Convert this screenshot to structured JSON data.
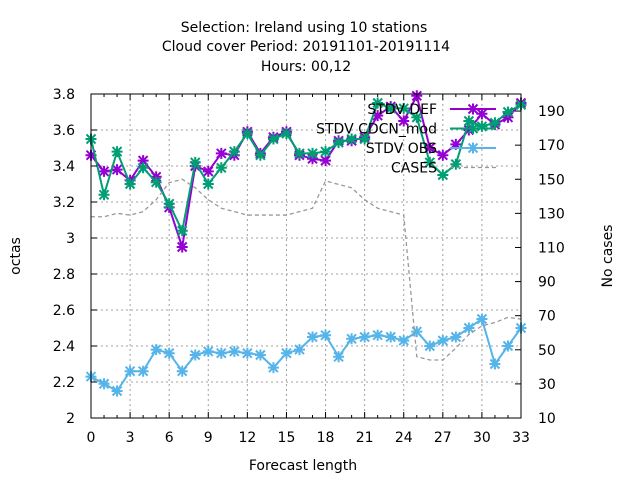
{
  "chart_data": {
    "type": "line",
    "title_lines": [
      "Selection: Ireland using    10 stations",
      "Cloud cover   Period: 20191101-20191114",
      "Hours:  00,12"
    ],
    "xlabel": "Forecast length",
    "ylabel": "octas",
    "y2label": "No cases",
    "xlim": [
      0,
      33
    ],
    "ylim": [
      2,
      3.8
    ],
    "y2lim": [
      10,
      200
    ],
    "xticks": [
      0,
      3,
      6,
      9,
      12,
      15,
      18,
      21,
      24,
      27,
      30,
      33
    ],
    "yticks": [
      "2",
      "2.2",
      "2.4",
      "2.6",
      "2.8",
      "3",
      "3.2",
      "3.4",
      "3.6",
      "3.8"
    ],
    "y2ticks": [
      "10",
      "30",
      "50",
      "70",
      "90",
      "110",
      "130",
      "150",
      "170",
      "190"
    ],
    "grid": true,
    "legend_position": "top-right",
    "series": [
      {
        "name": "STDV DEF",
        "color": "#9400d3",
        "marker": "x-star",
        "axis": "left",
        "x": [
          0,
          1,
          2,
          3,
          4,
          5,
          6,
          7,
          8,
          9,
          10,
          11,
          12,
          13,
          14,
          15,
          16,
          17,
          18,
          19,
          20,
          21,
          22,
          23,
          24,
          25,
          26,
          27,
          28,
          29,
          30,
          31,
          32,
          33
        ],
        "values": [
          3.46,
          3.37,
          3.38,
          3.32,
          3.43,
          3.34,
          3.17,
          2.95,
          3.4,
          3.37,
          3.47,
          3.46,
          3.59,
          3.47,
          3.56,
          3.59,
          3.46,
          3.44,
          3.43,
          3.54,
          3.54,
          3.56,
          3.68,
          3.73,
          3.65,
          3.79,
          3.5,
          3.46,
          3.52,
          3.6,
          3.69,
          3.63,
          3.67,
          3.75
        ]
      },
      {
        "name": "STDV CDCN_mod",
        "color": "#009e73",
        "marker": "x-star",
        "axis": "left",
        "x": [
          0,
          1,
          2,
          3,
          4,
          5,
          6,
          7,
          8,
          9,
          10,
          11,
          12,
          13,
          14,
          15,
          16,
          17,
          18,
          19,
          20,
          21,
          22,
          23,
          24,
          25,
          26,
          27,
          28,
          29,
          30,
          31,
          32,
          33
        ],
        "values": [
          3.55,
          3.24,
          3.48,
          3.3,
          3.39,
          3.31,
          3.19,
          3.04,
          3.42,
          3.3,
          3.39,
          3.48,
          3.58,
          3.46,
          3.55,
          3.58,
          3.47,
          3.47,
          3.48,
          3.53,
          3.55,
          3.55,
          3.75,
          3.72,
          3.72,
          3.67,
          3.42,
          3.35,
          3.41,
          3.65,
          3.62,
          3.64,
          3.7,
          3.74
        ]
      },
      {
        "name": "STDV OBS",
        "color": "#56b4e9",
        "marker": "x-star",
        "axis": "left",
        "x": [
          0,
          1,
          2,
          3,
          4,
          5,
          6,
          7,
          8,
          9,
          10,
          11,
          12,
          13,
          14,
          15,
          16,
          17,
          18,
          19,
          20,
          21,
          22,
          23,
          24,
          25,
          26,
          27,
          28,
          29,
          30,
          31,
          32,
          33
        ],
        "values": [
          2.23,
          2.19,
          2.15,
          2.26,
          2.26,
          2.38,
          2.36,
          2.26,
          2.35,
          2.37,
          2.36,
          2.37,
          2.36,
          2.35,
          2.28,
          2.36,
          2.38,
          2.45,
          2.46,
          2.34,
          2.44,
          2.45,
          2.46,
          2.45,
          2.43,
          2.48,
          2.4,
          2.43,
          2.45,
          2.5,
          2.55,
          2.3,
          2.4,
          2.5
        ]
      },
      {
        "name": "CASES",
        "color": "#999999",
        "dashed": true,
        "axis": "right",
        "x": [
          0,
          1,
          2,
          3,
          4,
          5,
          6,
          7,
          8,
          9,
          10,
          11,
          12,
          13,
          14,
          15,
          16,
          17,
          18,
          19,
          20,
          21,
          22,
          23,
          24,
          25,
          26,
          27,
          28,
          29,
          30,
          31,
          32,
          33
        ],
        "values": [
          128,
          128,
          130,
          129,
          131,
          138,
          148,
          150,
          145,
          138,
          133,
          131,
          129,
          129,
          129,
          129,
          131,
          133,
          149,
          147,
          145,
          138,
          133,
          131,
          129,
          46,
          44,
          44,
          51,
          59,
          64,
          66,
          69,
          68
        ]
      }
    ]
  }
}
